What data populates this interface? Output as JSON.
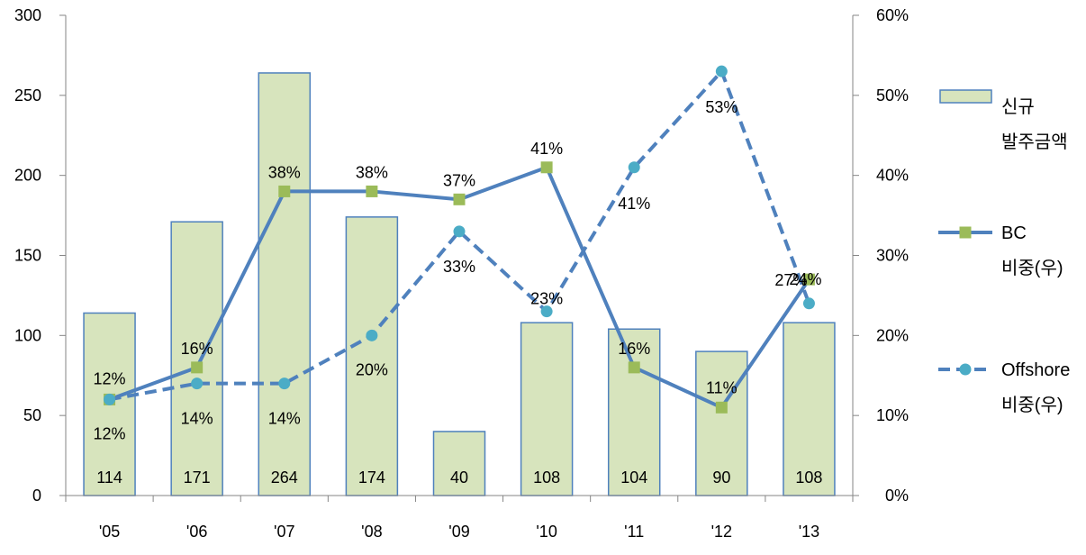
{
  "chart_data": {
    "type": "bar",
    "categories": [
      "'05",
      "'06",
      "'07",
      "'08",
      "'09",
      "'10",
      "'11",
      "'12",
      "'13"
    ],
    "bar_series": {
      "name_lines": [
        "신규",
        "발주금액"
      ],
      "values": [
        114,
        171,
        264,
        174,
        40,
        108,
        104,
        90,
        108
      ],
      "labels": [
        "114",
        "171",
        "264",
        "174",
        "40",
        "108",
        "104",
        "90",
        "108"
      ],
      "color": "#d7e4bd",
      "border": "#4f81bd",
      "axis": "left"
    },
    "line_series": [
      {
        "name_lines": [
          "BC",
          "비중(우)"
        ],
        "values": [
          12,
          16,
          38,
          38,
          37,
          41,
          16,
          11,
          27
        ],
        "labels": [
          "12%",
          "16%",
          "38%",
          "38%",
          "37%",
          "41%",
          "16%",
          "11%",
          "27%"
        ],
        "style": "solid",
        "marker": "square",
        "line_color": "#4f81bd",
        "marker_color": "#9bbb59",
        "axis": "right"
      },
      {
        "name_lines": [
          "Offshore",
          "비중(우)"
        ],
        "values": [
          12,
          14,
          14,
          20,
          33,
          23,
          41,
          53,
          24
        ],
        "labels": [
          "12%",
          "14%",
          "14%",
          "20%",
          "33%",
          "23%",
          "41%",
          "53%",
          "24%"
        ],
        "style": "dashed",
        "marker": "circle",
        "line_color": "#4f81bd",
        "marker_color": "#4bacc6",
        "axis": "right"
      }
    ],
    "y_left": {
      "min": 0,
      "max": 300,
      "ticks": [
        0,
        50,
        100,
        150,
        200,
        250,
        300
      ],
      "tick_labels": [
        "0",
        "50",
        "100",
        "150",
        "200",
        "250",
        "300"
      ]
    },
    "y_right": {
      "min": 0,
      "max": 60,
      "ticks": [
        0,
        10,
        20,
        30,
        40,
        50,
        60
      ],
      "tick_labels": [
        "0%",
        "10%",
        "20%",
        "30%",
        "40%",
        "50%",
        "60%"
      ]
    },
    "grid": false,
    "legend_position": "right"
  }
}
